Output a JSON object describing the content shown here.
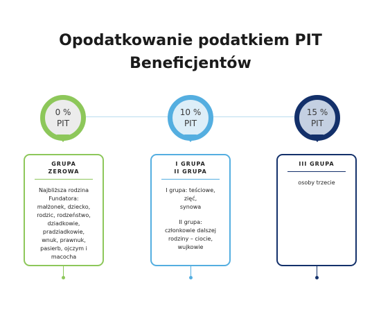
{
  "title": {
    "line1": "Opodatkowanie podatkiem PIT",
    "line2": "Beneficjentów"
  },
  "colors": {
    "green": "#8dc75a",
    "light_blue": "#54aee0",
    "navy": "#13306a"
  },
  "groups": [
    {
      "rate": "0 %",
      "rate_label": "PIT",
      "title": [
        "GRUPA",
        "ZEROWA"
      ],
      "body": [
        "Najbliższa rodzina",
        "Fundatora:",
        "małżonek, dziecko,",
        "rodzic, rodzeństwo,",
        "dziadkowie,",
        "pradziadkowie,",
        "wnuk, prawnuk,",
        "pasierb, ojczym i",
        "macocha"
      ]
    },
    {
      "rate": "10 %",
      "rate_label": "PIT",
      "title": [
        "I GRUPA",
        "II GRUPA"
      ],
      "body": [
        "I grupa: teściowe,",
        "zięć,",
        "synowa",
        "",
        "II grupa:",
        "członkowie dalszej",
        "rodziny – ciocie,",
        "wujkowie"
      ]
    },
    {
      "rate": "15 %",
      "rate_label": "PIT",
      "title": [
        "III GRUPA"
      ],
      "body": [
        "osoby trzecie"
      ]
    }
  ]
}
